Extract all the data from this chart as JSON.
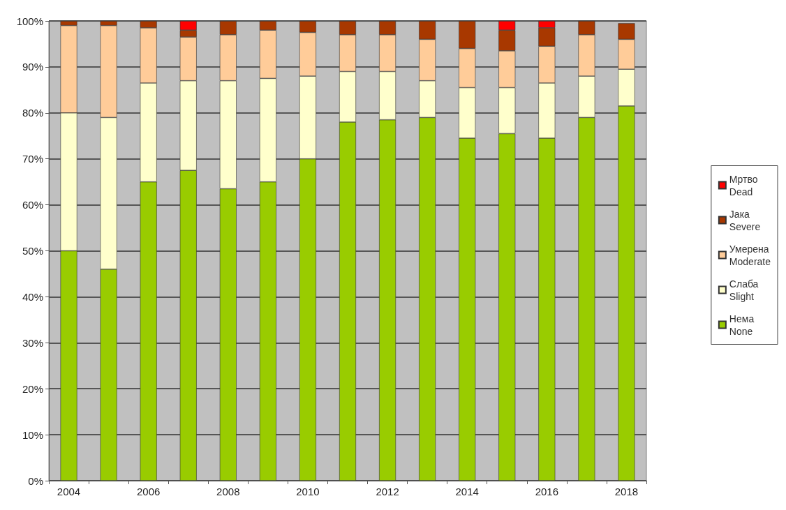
{
  "chart_data": {
    "type": "bar",
    "stacked": true,
    "grid": "y",
    "legend": "right",
    "categories": [
      "2004",
      null,
      "2006",
      null,
      "2008",
      null,
      "2010",
      null,
      "2012",
      null,
      "2014",
      null,
      "2016",
      null,
      "2018"
    ],
    "ylim": [
      0,
      100
    ],
    "yticks": [
      {
        "value": 0,
        "label": "0%"
      },
      {
        "value": 10,
        "label": "10%"
      },
      {
        "value": 20,
        "label": "20%"
      },
      {
        "value": 30,
        "label": "30%"
      },
      {
        "value": 40,
        "label": "40%"
      },
      {
        "value": 50,
        "label": "50%"
      },
      {
        "value": 60,
        "label": "60%"
      },
      {
        "value": 70,
        "label": "70%"
      },
      {
        "value": 80,
        "label": "80%"
      },
      {
        "value": 90,
        "label": "90%"
      },
      {
        "value": 100,
        "label": "100%"
      }
    ],
    "series": [
      {
        "name": "Нема\nNone",
        "color": "#99cc00",
        "values": [
          50,
          46,
          65,
          67.5,
          63.5,
          65,
          70,
          78,
          78.5,
          79,
          74.5,
          75.5,
          74.5,
          79,
          81.5
        ]
      },
      {
        "name": "Слаба\nSlight",
        "color": "#ffffcc",
        "values": [
          30,
          33,
          21.5,
          19.5,
          23.5,
          22.5,
          18,
          11,
          10.5,
          8,
          11,
          10,
          12,
          9,
          8
        ]
      },
      {
        "name": "Умерена\nModerate",
        "color": "#ffcc99",
        "values": [
          19,
          20,
          12,
          9.5,
          10,
          10.5,
          9.5,
          8,
          8,
          9,
          8.5,
          8,
          8,
          9,
          6.5
        ]
      },
      {
        "name": "Јака\nSevere",
        "color": "#a83800",
        "values": [
          1,
          1,
          1.5,
          1.5,
          3,
          2,
          2.5,
          3,
          3,
          4,
          6,
          4.5,
          4,
          3,
          3.5
        ]
      },
      {
        "name": "Мртво\nDead",
        "color": "#ff0000",
        "values": [
          0,
          0,
          0,
          2,
          0,
          0,
          0,
          0,
          0,
          0,
          0,
          2,
          1.5,
          0,
          0
        ]
      }
    ]
  }
}
